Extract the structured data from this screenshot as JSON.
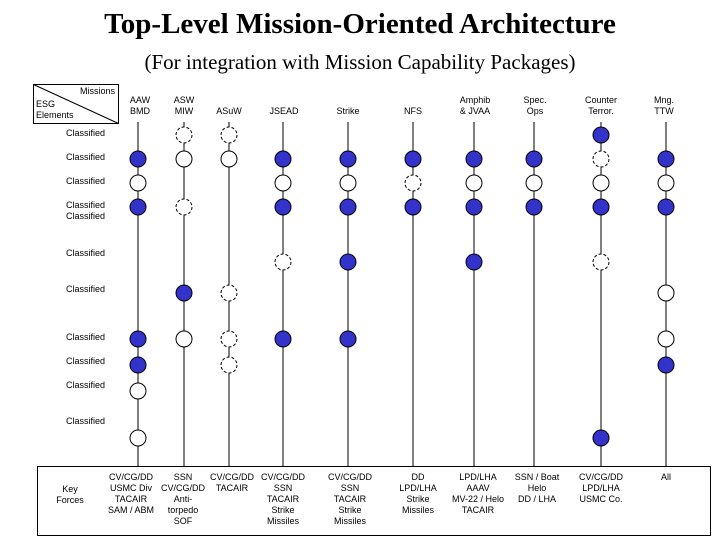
{
  "title": "Top-Level Mission-Oriented Architecture",
  "subtitle": "(For integration with Mission Capability Packages)",
  "corner": {
    "top_label": "Missions",
    "bottom_label_line1": "ESG",
    "bottom_label_line2": "Elements"
  },
  "columns": [
    {
      "line1": "AAW",
      "line2": "BMD"
    },
    {
      "line1": "ASW",
      "line2": "MIW"
    },
    {
      "line1": "ASuW",
      "line2": ""
    },
    {
      "line1": "JSEAD",
      "line2": ""
    },
    {
      "line1": "Strike",
      "line2": ""
    },
    {
      "line1": "NFS",
      "line2": ""
    },
    {
      "line1": "Amphib",
      "line2": "& JVAA"
    },
    {
      "line1": "Spec.",
      "line2": "Ops"
    },
    {
      "line1": "Counter",
      "line2": "Terror."
    },
    {
      "line1": "Mng.",
      "line2": "TTW"
    }
  ],
  "rows": [
    {
      "label": "Classified",
      "label2": ""
    },
    {
      "label": "Classified",
      "label2": ""
    },
    {
      "label": "Classified",
      "label2": ""
    },
    {
      "label": "Classified",
      "label2": "Classified"
    },
    {
      "label": "Classified",
      "label2": ""
    },
    {
      "label": "Classified",
      "label2": ""
    },
    {
      "label": "Classified",
      "label2": ""
    },
    {
      "label": "Classified",
      "label2": ""
    },
    {
      "label": "Classified",
      "label2": ""
    },
    {
      "label": "Classified",
      "label2": ""
    }
  ],
  "legend_markers": {
    "filled": "filled circle",
    "open": "open circle",
    "dashed": "dashed circle"
  },
  "colors": {
    "filled": "#3333cc",
    "line": "#000000"
  },
  "markers": [
    {
      "col": 1,
      "row": 1,
      "type": "dashed"
    },
    {
      "col": 2,
      "row": 1,
      "type": "dashed"
    },
    {
      "col": 8,
      "row": 1,
      "type": "filled"
    },
    {
      "col": 0,
      "row": 2,
      "type": "filled"
    },
    {
      "col": 1,
      "row": 2,
      "type": "open"
    },
    {
      "col": 2,
      "row": 2,
      "type": "open"
    },
    {
      "col": 3,
      "row": 2,
      "type": "filled"
    },
    {
      "col": 4,
      "row": 2,
      "type": "filled"
    },
    {
      "col": 5,
      "row": 2,
      "type": "filled"
    },
    {
      "col": 6,
      "row": 2,
      "type": "filled"
    },
    {
      "col": 7,
      "row": 2,
      "type": "filled"
    },
    {
      "col": 8,
      "row": 2,
      "type": "dashed"
    },
    {
      "col": 9,
      "row": 2,
      "type": "filled"
    },
    {
      "col": 0,
      "row": 3,
      "type": "open"
    },
    {
      "col": 3,
      "row": 3,
      "type": "open"
    },
    {
      "col": 4,
      "row": 3,
      "type": "open"
    },
    {
      "col": 5,
      "row": 3,
      "type": "dashed"
    },
    {
      "col": 6,
      "row": 3,
      "type": "open"
    },
    {
      "col": 7,
      "row": 3,
      "type": "open"
    },
    {
      "col": 8,
      "row": 3,
      "type": "open"
    },
    {
      "col": 9,
      "row": 3,
      "type": "open"
    },
    {
      "col": 0,
      "row": 4,
      "type": "filled"
    },
    {
      "col": 1,
      "row": 4,
      "type": "dashed"
    },
    {
      "col": 3,
      "row": 4,
      "type": "filled"
    },
    {
      "col": 4,
      "row": 4,
      "type": "filled"
    },
    {
      "col": 5,
      "row": 4,
      "type": "filled"
    },
    {
      "col": 6,
      "row": 4,
      "type": "filled"
    },
    {
      "col": 7,
      "row": 4,
      "type": "filled"
    },
    {
      "col": 8,
      "row": 4,
      "type": "filled"
    },
    {
      "col": 9,
      "row": 4,
      "type": "filled"
    },
    {
      "col": 3,
      "row": 5,
      "type": "dashed"
    },
    {
      "col": 4,
      "row": 5,
      "type": "filled"
    },
    {
      "col": 6,
      "row": 5,
      "type": "filled"
    },
    {
      "col": 8,
      "row": 5,
      "type": "dashed"
    },
    {
      "col": 1,
      "row": 6,
      "type": "filled"
    },
    {
      "col": 2,
      "row": 6,
      "type": "dashed"
    },
    {
      "col": 9,
      "row": 6,
      "type": "open"
    },
    {
      "col": 0,
      "row": 7,
      "type": "filled"
    },
    {
      "col": 1,
      "row": 7,
      "type": "open"
    },
    {
      "col": 2,
      "row": 7,
      "type": "dashed"
    },
    {
      "col": 3,
      "row": 7,
      "type": "filled"
    },
    {
      "col": 4,
      "row": 7,
      "type": "filled"
    },
    {
      "col": 9,
      "row": 7,
      "type": "open"
    },
    {
      "col": 0,
      "row": 8,
      "type": "filled"
    },
    {
      "col": 2,
      "row": 8,
      "type": "dashed"
    },
    {
      "col": 9,
      "row": 8,
      "type": "filled"
    },
    {
      "col": 0,
      "row": 9,
      "type": "open"
    },
    {
      "col": 0,
      "row": 10,
      "type": "open"
    },
    {
      "col": 8,
      "row": 10,
      "type": "filled"
    }
  ],
  "key": {
    "label_line1": "Key",
    "label_line2": "Forces",
    "columns": [
      [
        "CV/CG/DD",
        "USMC Div",
        "TACAIR",
        "SAM / ABM"
      ],
      [
        "SSN",
        "CV/CG/DD",
        "Anti-",
        "torpedo",
        "SOF"
      ],
      [
        "CV/CG/DD",
        "TACAIR"
      ],
      [
        "CV/CG/DD",
        "SSN",
        "TACAIR",
        "Strike",
        "Missiles"
      ],
      [
        "CV/CG/DD",
        "SSN",
        "TACAIR",
        "Strike",
        "Missiles"
      ],
      [
        "DD",
        "LPD/LHA",
        "Strike",
        "Missiles"
      ],
      [
        "LPD/LHA",
        "AAAV",
        "MV-22 / Helo",
        "TACAIR"
      ],
      [
        "SSN / Boat",
        "Helo",
        "DD / LHA"
      ],
      [
        "CV/CG/DD",
        "LPD/LHA",
        "USMC Co."
      ],
      [
        "All"
      ]
    ]
  }
}
